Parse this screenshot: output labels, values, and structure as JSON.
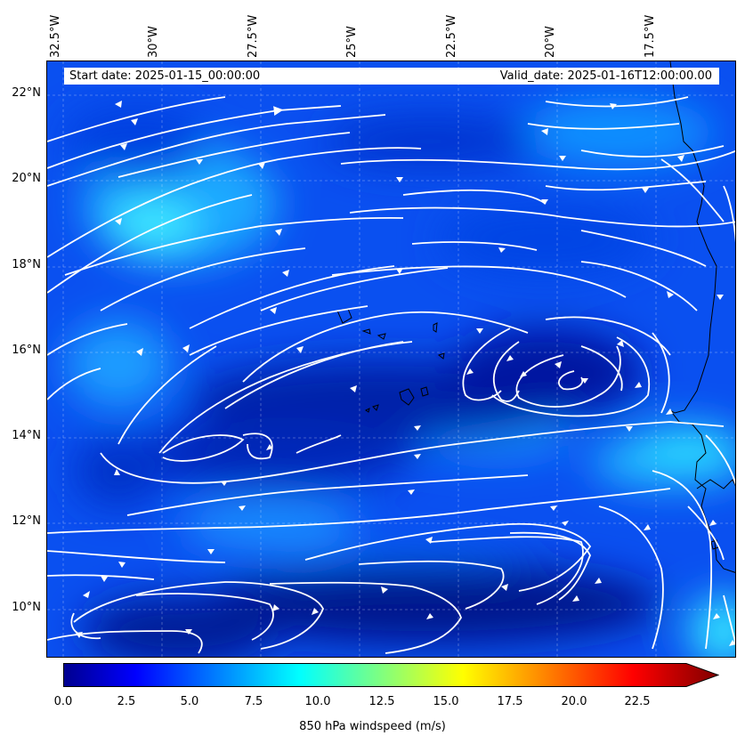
{
  "header": {
    "start_date": "Start date: 2025-01-15_00:00:00",
    "valid_date": "Valid_date: 2025-01-16T12:00:00.00"
  },
  "axes": {
    "lon_labels": [
      "32.5°W",
      "30°W",
      "27.5°W",
      "25°W",
      "22.5°W",
      "20°W",
      "17.5°W"
    ],
    "lat_labels": [
      "22°N",
      "20°N",
      "18°N",
      "16°N",
      "14°N",
      "12°N",
      "10°N"
    ]
  },
  "colorbar": {
    "label": "850 hPa windspeed (m/s)",
    "ticks": [
      "0.0",
      "2.5",
      "5.0",
      "7.5",
      "10.0",
      "12.5",
      "15.0",
      "17.5",
      "20.0",
      "22.5"
    ],
    "min": 0,
    "max": 25,
    "extend": "max",
    "colormap": "jet"
  },
  "map": {
    "field": "850 hPa windspeed",
    "streamline_color": "#ffffff",
    "coastline_color": "#000000",
    "gridlines": true
  }
}
